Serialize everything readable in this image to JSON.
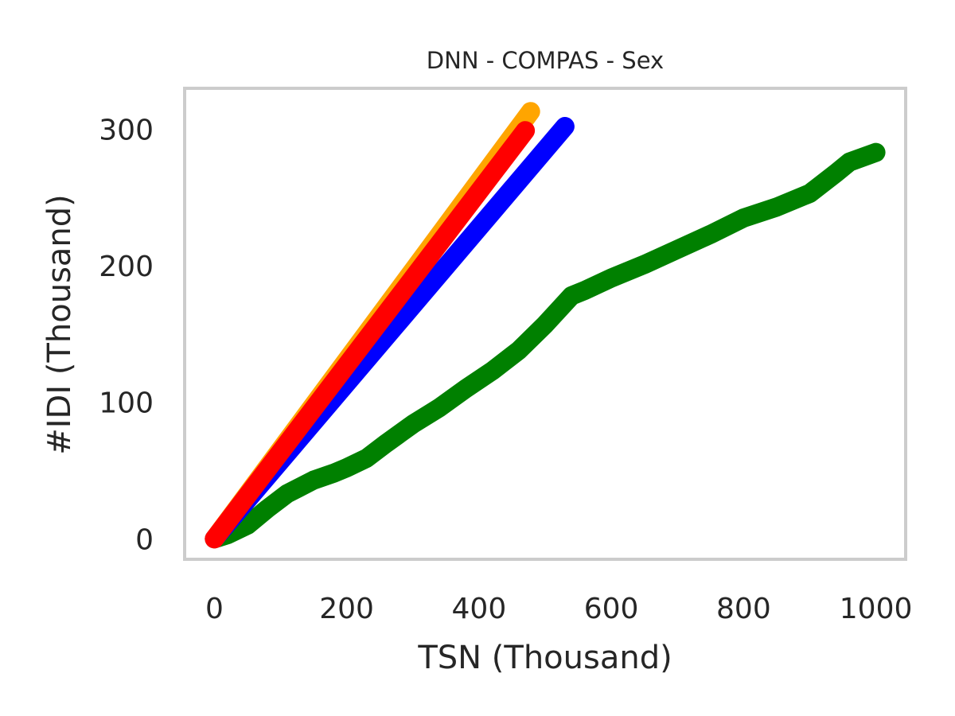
{
  "chart_data": {
    "type": "line",
    "title": "DNN - COMPAS - Sex",
    "xlabel": "TSN (Thousand)",
    "ylabel": "#IDI (Thousand)",
    "xlim": [
      -45,
      1045
    ],
    "ylim": [
      -15,
      330
    ],
    "xticks": [
      0,
      200,
      400,
      600,
      800,
      1000
    ],
    "yticks": [
      0,
      100,
      200,
      300
    ],
    "grid": false,
    "legend": "none",
    "series": [
      {
        "color": "#008000",
        "x": [
          0,
          20,
          50,
          80,
          110,
          150,
          180,
          200,
          230,
          260,
          300,
          340,
          380,
          420,
          460,
          500,
          540,
          560,
          600,
          650,
          700,
          750,
          800,
          850,
          900,
          940,
          960,
          1000
        ],
        "y": [
          0,
          3,
          10,
          22,
          33,
          43,
          48,
          52,
          59,
          70,
          84,
          96,
          110,
          123,
          138,
          157,
          178,
          182,
          191,
          201,
          212,
          223,
          235,
          243,
          253,
          268,
          276,
          283
        ]
      },
      {
        "color": "#0000ff",
        "x": [
          0,
          530
        ],
        "y": [
          0,
          302
        ]
      },
      {
        "color": "#ffa500",
        "x": [
          0,
          478
        ],
        "y": [
          0,
          313
        ]
      },
      {
        "color": "#ff0000",
        "x": [
          0,
          470
        ],
        "y": [
          0,
          299
        ]
      }
    ]
  }
}
